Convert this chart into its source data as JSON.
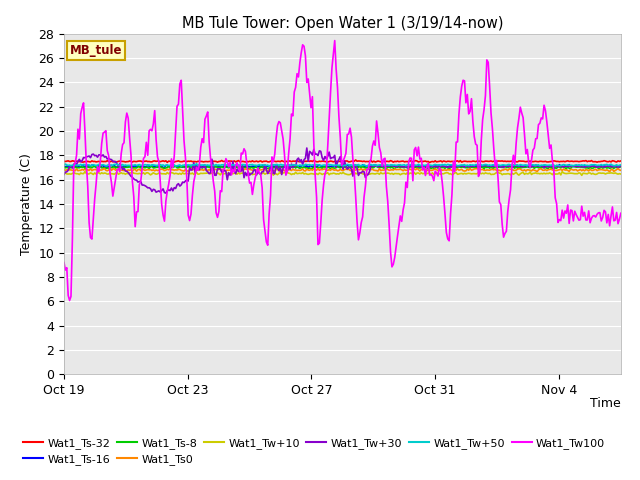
{
  "title": "MB Tule Tower: Open Water 1 (3/19/14-now)",
  "xlabel": "Time",
  "ylabel": "Temperature (C)",
  "ylim": [
    0,
    28
  ],
  "yticks": [
    0,
    2,
    4,
    6,
    8,
    10,
    12,
    14,
    16,
    18,
    20,
    22,
    24,
    26,
    28
  ],
  "bg_color": "#e8e8e8",
  "fig_bg_color": "#ffffff",
  "legend_box_facecolor": "#ffffc0",
  "legend_box_edgecolor": "#c8a000",
  "legend_label_color": "#800000",
  "series": [
    {
      "label": "Wat1_Ts-32",
      "color": "#ff0000",
      "lw": 1.2
    },
    {
      "label": "Wat1_Ts-16",
      "color": "#0000ff",
      "lw": 1.2
    },
    {
      "label": "Wat1_Ts-8",
      "color": "#00cc00",
      "lw": 1.2
    },
    {
      "label": "Wat1_Ts0",
      "color": "#ff8800",
      "lw": 1.2
    },
    {
      "label": "Wat1_Tw+10",
      "color": "#cccc00",
      "lw": 1.2
    },
    {
      "label": "Wat1_Tw+30",
      "color": "#8800cc",
      "lw": 1.2
    },
    {
      "label": "Wat1_Tw+50",
      "color": "#00cccc",
      "lw": 1.2
    },
    {
      "label": "Wat1_Tw100",
      "color": "#ff00ff",
      "lw": 1.2
    }
  ],
  "x_tick_labels": [
    "Oct 19",
    "Oct 23",
    "Oct 27",
    "Oct 31",
    "Nov 4"
  ],
  "x_tick_positions": [
    0,
    4,
    8,
    12,
    16
  ],
  "xlim": [
    0,
    18
  ]
}
